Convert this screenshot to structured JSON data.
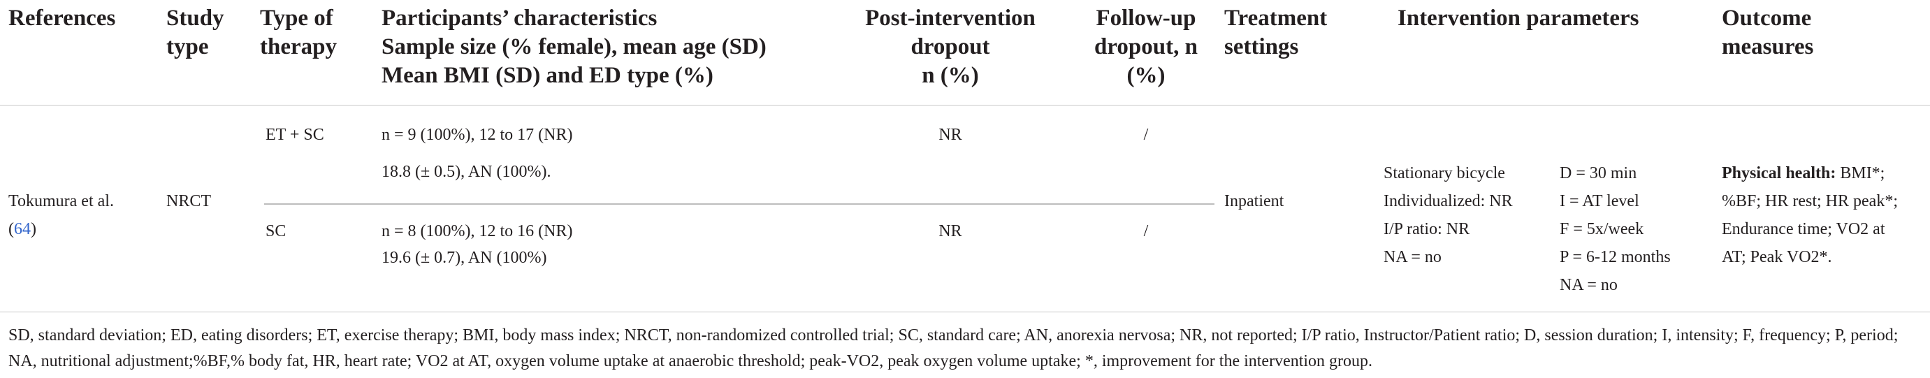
{
  "headers": {
    "references": "References",
    "study_type": [
      "Study",
      "type"
    ],
    "therapy": [
      "Type of",
      "therapy"
    ],
    "participants": [
      "Participants’ characteristics",
      "Sample size (% female), mean age (SD)",
      "Mean BMI (SD) and ED type (%)"
    ],
    "post_dropout": [
      "Post-intervention",
      "dropout",
      "n (%)"
    ],
    "follow_dropout": [
      "Follow-up",
      "dropout, n",
      "(%)"
    ],
    "settings": [
      "Treatment",
      "settings"
    ],
    "parameters": "Intervention parameters",
    "outcomes": [
      "Outcome",
      "measures"
    ]
  },
  "row": {
    "reference_text": "Tokumura et al.",
    "reference_open": "(",
    "reference_link": "64",
    "reference_close": ")",
    "study_type": "NRCT",
    "setting": "Inpatient",
    "groups": [
      {
        "therapy": "ET + SC",
        "participants_line1": "n = 9 (100%), 12 to 17 (NR)",
        "participants_line2": "18.8 (± 0.5), AN (100%).",
        "post_dropout": "NR",
        "follow_dropout": "/"
      },
      {
        "therapy": "SC",
        "participants_line1": "n = 8 (100%), 12 to 16 (NR)",
        "participants_line2": "19.6 (± 0.7), AN (100%)",
        "post_dropout": "NR",
        "follow_dropout": "/"
      }
    ],
    "parameters_left": [
      "Stationary bicycle",
      "Individualized: NR",
      "I/P ratio: NR",
      "NA = no"
    ],
    "parameters_right": [
      "D = 30 min",
      "I = AT level",
      "F = 5x/week",
      "P = 6-12 months",
      "NA = no"
    ],
    "outcomes_label": "Physical health:",
    "outcomes_lines": [
      " BMI*;",
      "%BF; HR rest; HR peak*;",
      "Endurance time; VO2 at",
      "AT; Peak VO2*."
    ]
  },
  "footnote": "SD, standard deviation; ED, eating disorders; ET, exercise therapy; BMI, body mass index; NRCT, non-randomized controlled trial; SC, standard care; AN, anorexia nervosa; NR, not reported; I/P ratio, Instructor/Patient ratio; D, session duration; I, intensity; F, frequency; P, period; NA, nutritional adjustment;%BF,% body fat, HR, heart rate; VO2 at AT, oxygen volume uptake at anaerobic threshold; peak-VO2, peak oxygen volume uptake; *, improvement for the intervention group.",
  "colors": {
    "text": "#231f20",
    "rule": "#bfbfbf",
    "link": "#3366cc"
  }
}
